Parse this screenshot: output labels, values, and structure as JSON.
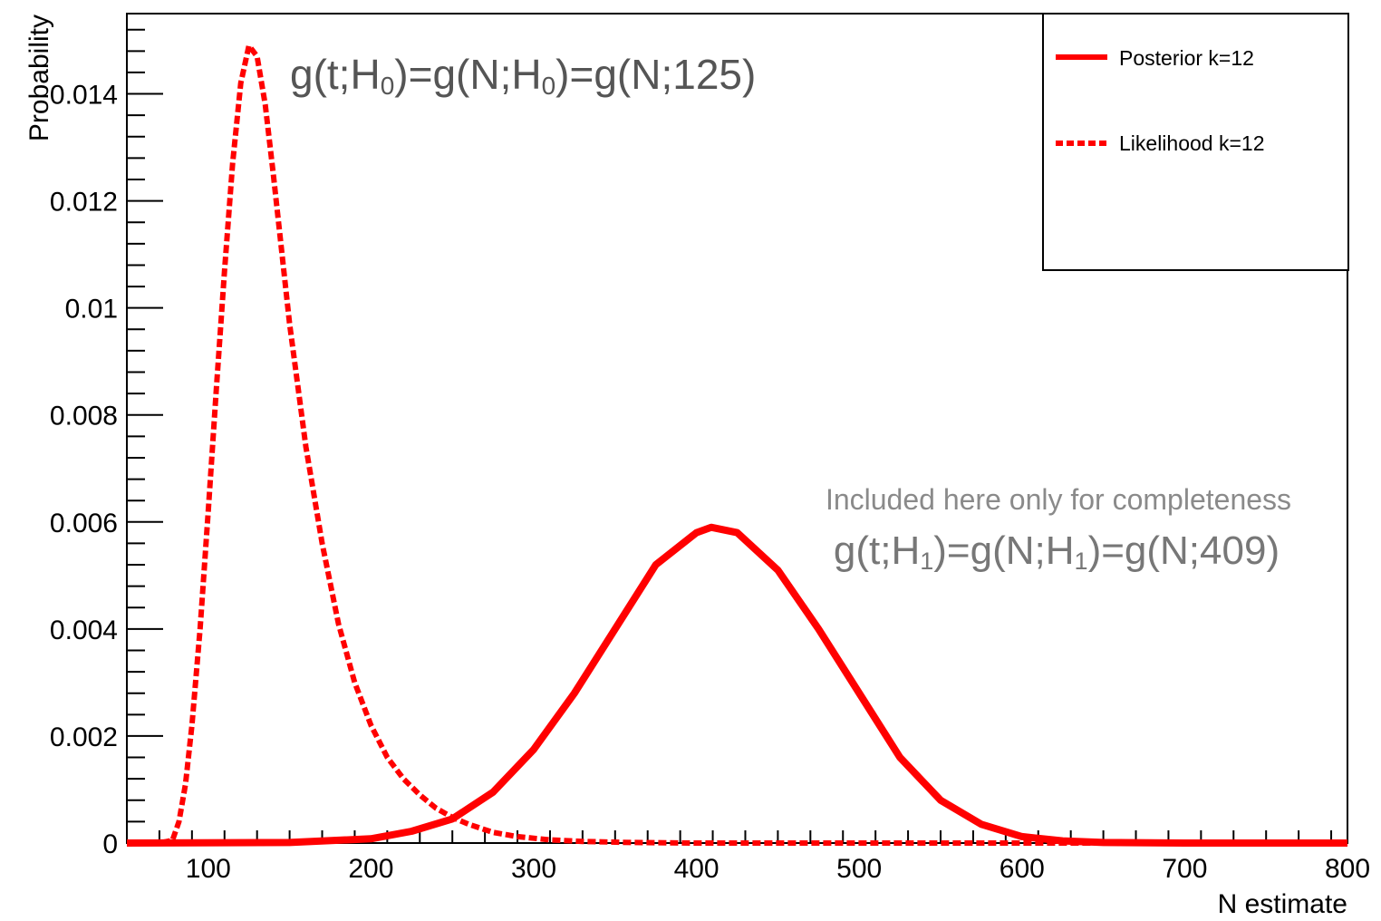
{
  "chart_data": {
    "type": "line",
    "title": "",
    "xlabel": "N estimate",
    "ylabel": "Probability",
    "xlim": [
      50,
      800
    ],
    "ylim": [
      0,
      0.0155
    ],
    "x_ticks": [
      100,
      200,
      300,
      400,
      500,
      600,
      700,
      800
    ],
    "y_ticks": [
      0,
      0.002,
      0.004,
      0.006,
      0.008,
      0.01,
      0.012,
      0.014
    ],
    "y_tick_labels": [
      "0",
      "0.002",
      "0.004",
      "0.006",
      "0.008",
      "0.01",
      "0.012",
      "0.014"
    ],
    "legend": {
      "position": "top-right",
      "entries": [
        "Posterior k=12",
        "Likelihood k=12"
      ]
    },
    "annotations": {
      "h0": {
        "prefix": "g(t;H",
        "sub1": "0",
        "mid": ")=g(N;H",
        "sub2": "0",
        "suffix": ")=g(N;125)"
      },
      "h1_note": "Included here only for completeness",
      "h1": {
        "prefix": "g(t;H",
        "sub1": "1",
        "mid": ")=g(N;H",
        "sub2": "1",
        "suffix": ")=g(N;409)"
      }
    },
    "series": [
      {
        "name": "Likelihood k=12",
        "style": "dashed",
        "color": "#ff0000",
        "x": [
          50,
          70,
          78,
          82,
          86,
          90,
          95,
          100,
          105,
          110,
          115,
          120,
          125,
          130,
          135,
          140,
          145,
          150,
          160,
          170,
          180,
          190,
          200,
          210,
          220,
          230,
          240,
          250,
          260,
          275,
          290,
          310,
          330,
          360,
          400,
          450,
          500,
          600,
          700,
          800
        ],
        "y": [
          0,
          0,
          5e-05,
          0.0004,
          0.0011,
          0.0022,
          0.004,
          0.0062,
          0.0085,
          0.0107,
          0.0127,
          0.0142,
          0.0149,
          0.0147,
          0.0138,
          0.0125,
          0.0111,
          0.0097,
          0.0074,
          0.0056,
          0.0041,
          0.003,
          0.0022,
          0.0016,
          0.0012,
          0.0009,
          0.00065,
          0.00048,
          0.00035,
          0.0002,
          0.00012,
          6e-05,
          3e-05,
          1e-05,
          0,
          0,
          0,
          0,
          0,
          0
        ]
      },
      {
        "name": "Posterior k=12",
        "style": "solid",
        "color": "#ff0000",
        "x": [
          50,
          150,
          200,
          225,
          250,
          275,
          300,
          325,
          350,
          375,
          400,
          409,
          425,
          450,
          475,
          500,
          525,
          550,
          575,
          600,
          625,
          650,
          700,
          800
        ],
        "y": [
          0,
          1e-05,
          8e-05,
          0.00022,
          0.00045,
          0.00095,
          0.00175,
          0.0028,
          0.004,
          0.0052,
          0.0058,
          0.0059,
          0.0058,
          0.0051,
          0.004,
          0.0028,
          0.0016,
          0.0008,
          0.00035,
          0.00012,
          4e-05,
          1e-05,
          0,
          0
        ]
      }
    ]
  }
}
